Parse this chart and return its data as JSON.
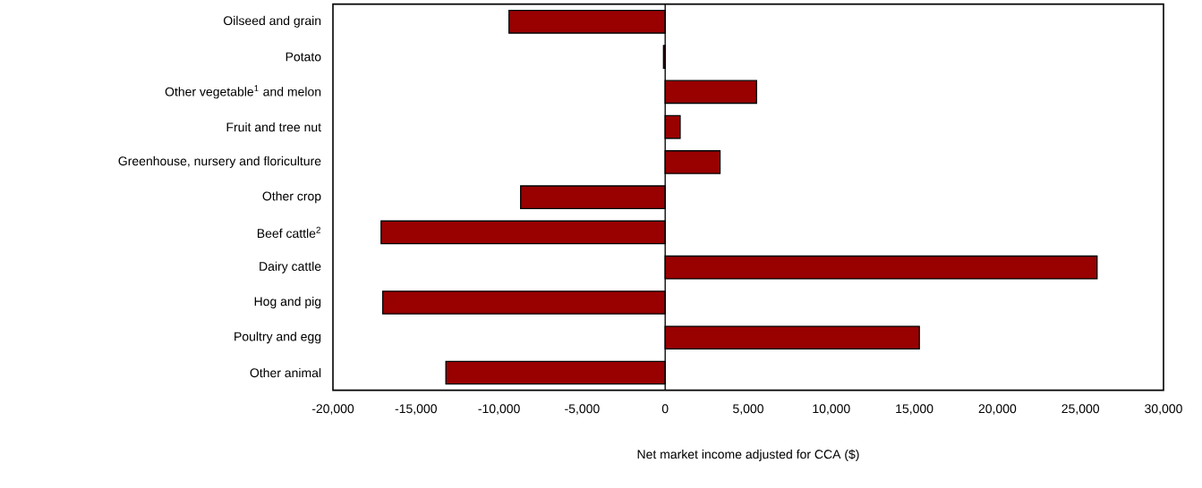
{
  "chart_data": {
    "type": "bar",
    "orientation": "horizontal",
    "xlabel": "Net market income adjusted for CCA ($)",
    "categories": [
      "Oilseed and grain",
      "Potato",
      "Other vegetable$^{1}$ and melon",
      "Fruit and tree nut",
      "Greenhouse, nursery and floriculture",
      "Other crop",
      "Beef cattle$^{2}$",
      "Dairy cattle",
      "Hog and pig",
      "Poultry and egg",
      "Other animal"
    ],
    "values": [
      -9400,
      -100,
      5500,
      900,
      3300,
      -8700,
      -17100,
      26000,
      -17000,
      15300,
      -13200
    ],
    "color": "#990000",
    "xlim": [
      -20000,
      30000
    ],
    "xticks": [
      {
        "value": -20000,
        "label": "-20,000"
      },
      {
        "value": -15000,
        "label": "-15,000"
      },
      {
        "value": -10000,
        "label": "-10,000"
      },
      {
        "value": -5000,
        "label": "-5,000"
      },
      0,
      {
        "value": 5000,
        "label": "5,000"
      },
      {
        "value": 10000,
        "label": "10,000"
      },
      {
        "value": 15000,
        "label": "15,000"
      },
      {
        "value": 20000,
        "label": "20,000"
      },
      {
        "value": 25000,
        "label": "25,000"
      },
      {
        "value": 30000,
        "label": "30,000"
      }
    ],
    "stacked": false
  }
}
